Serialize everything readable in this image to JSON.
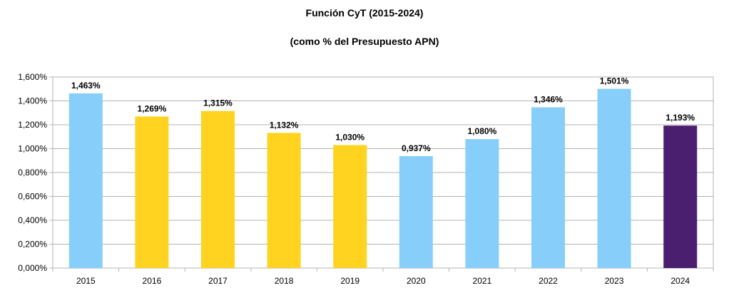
{
  "chart_data": {
    "type": "bar",
    "title": "Función CyT (2015-2024)",
    "subtitle": "(como % del Presupuesto APN)",
    "categories": [
      "2015",
      "2016",
      "2017",
      "2018",
      "2019",
      "2020",
      "2021",
      "2022",
      "2023",
      "2024"
    ],
    "values": [
      1.463,
      1.269,
      1.315,
      1.132,
      1.03,
      0.937,
      1.08,
      1.346,
      1.501,
      1.193
    ],
    "value_labels": [
      "1,463%",
      "1,269%",
      "1,315%",
      "1,132%",
      "1,030%",
      "0,937%",
      "1,080%",
      "1,346%",
      "1,501%",
      "1,193%"
    ],
    "bar_colors": [
      "#87CEFA",
      "#FFD320",
      "#FFD320",
      "#FFD320",
      "#FFD320",
      "#87CEFA",
      "#87CEFA",
      "#87CEFA",
      "#87CEFA",
      "#4B1F6F"
    ],
    "y_ticks": [
      0,
      0.2,
      0.4,
      0.6,
      0.8,
      1.0,
      1.2,
      1.4,
      1.6
    ],
    "y_tick_labels": [
      "0,000%",
      "0,200%",
      "0,400%",
      "0,600%",
      "0,800%",
      "1,000%",
      "1,200%",
      "1,400%",
      "1,600%"
    ],
    "ylim": [
      0,
      1.6
    ],
    "grid": true,
    "legend": false,
    "xlabel": "",
    "ylabel": ""
  }
}
